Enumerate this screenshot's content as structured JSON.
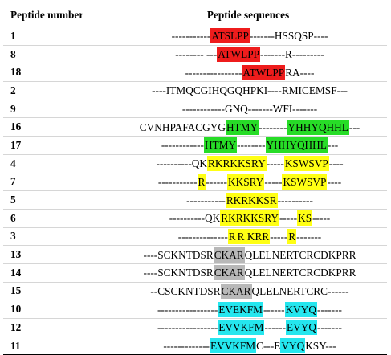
{
  "headers": {
    "number": "Peptide number",
    "sequence": "Peptide sequences"
  },
  "colors": {
    "red": "#ee1c1c",
    "green": "#27dc27",
    "yellow": "#ffff14",
    "gray": "#b8b8b8",
    "cyan": "#25e6ee"
  },
  "rows": [
    {
      "number": "1",
      "segments": [
        {
          "t": "-----------"
        },
        {
          "t": "ATSLPP",
          "hl": "red"
        },
        {
          "t": "-------HSSQSP----"
        }
      ]
    },
    {
      "number": "8",
      "segments": [
        {
          "t": "-------- ---"
        },
        {
          "t": "ATWLPP",
          "hl": "red"
        },
        {
          "t": "-------R---------"
        }
      ]
    },
    {
      "number": "18",
      "segments": [
        {
          "t": "----------------"
        },
        {
          "t": "ATWLPP",
          "hl": "red"
        },
        {
          "t": "RA----"
        }
      ]
    },
    {
      "number": "2",
      "segments": [
        {
          "t": "----ITMQCGIHQGQHPKI----RMICEMSF---"
        }
      ]
    },
    {
      "number": "9",
      "segments": [
        {
          "t": "------------GNQ-------WFI-------"
        }
      ]
    },
    {
      "number": "16",
      "segments": [
        {
          "t": "CVNHPAFACGYG"
        },
        {
          "t": "HTMY",
          "hl": "green"
        },
        {
          "t": "--------"
        },
        {
          "t": "YHHYQHHL",
          "hl": "green"
        },
        {
          "t": "---"
        }
      ]
    },
    {
      "number": "17",
      "segments": [
        {
          "t": "------------"
        },
        {
          "t": "HTMY",
          "hl": "green"
        },
        {
          "t": "--------"
        },
        {
          "t": "YHHYQHHL",
          "hl": "green"
        },
        {
          "t": "---"
        }
      ]
    },
    {
      "number": "4",
      "segments": [
        {
          "t": "----------QK"
        },
        {
          "t": "RKRKKSRY",
          "hl": "yellow"
        },
        {
          "t": "-----"
        },
        {
          "t": "KSWSVP",
          "hl": "yellow"
        },
        {
          "t": "----"
        }
      ]
    },
    {
      "number": "7",
      "segments": [
        {
          "t": "-----------"
        },
        {
          "t": "R",
          "hl": "yellow"
        },
        {
          "t": "------"
        },
        {
          "t": "KKSRY",
          "hl": "yellow"
        },
        {
          "t": "-----"
        },
        {
          "t": "KSWSVP",
          "hl": "yellow"
        },
        {
          "t": "----"
        }
      ]
    },
    {
      "number": "5",
      "segments": [
        {
          "t": "-----------"
        },
        {
          "t": "RKRKKSR",
          "hl": "yellow"
        },
        {
          "t": "----------"
        }
      ]
    },
    {
      "number": "6",
      "segments": [
        {
          "t": "----------QK"
        },
        {
          "t": "RKRKKSRY",
          "hl": "yellow"
        },
        {
          "t": "-----"
        },
        {
          "t": "KS",
          "hl": "yellow"
        },
        {
          "t": "-----"
        }
      ]
    },
    {
      "number": "3",
      "segments": [
        {
          "t": "--------------"
        },
        {
          "t": "R",
          "hl": "yellow"
        },
        {
          "t": "R KRR",
          "hl": "yellow"
        },
        {
          "t": "-----"
        },
        {
          "t": "R",
          "hl": "yellow"
        },
        {
          "t": "-------"
        }
      ]
    },
    {
      "number": "13",
      "segments": [
        {
          "t": "----SCKNTDSR"
        },
        {
          "t": "CKAR",
          "hl": "gray"
        },
        {
          "t": "QLELNERTCRCDKPRR"
        }
      ]
    },
    {
      "number": "14",
      "segments": [
        {
          "t": "----SCKNTDSR"
        },
        {
          "t": "CKAR",
          "hl": "gray"
        },
        {
          "t": "QLELNERTCRCDKPRR"
        }
      ]
    },
    {
      "number": "15",
      "segments": [
        {
          "t": "--CSCKNTDSR"
        },
        {
          "t": "CKAR",
          "hl": "gray"
        },
        {
          "t": "QLELNERTCRC------"
        }
      ]
    },
    {
      "number": "10",
      "segments": [
        {
          "t": "-----------------"
        },
        {
          "t": "EVEKFM",
          "hl": "cyan"
        },
        {
          "t": "------"
        },
        {
          "t": "KVYQ",
          "hl": "cyan"
        },
        {
          "t": "-------"
        }
      ]
    },
    {
      "number": "12",
      "segments": [
        {
          "t": "-----------------"
        },
        {
          "t": "EVVKFM",
          "hl": "cyan"
        },
        {
          "t": "------"
        },
        {
          "t": "EVYQ",
          "hl": "cyan"
        },
        {
          "t": "-------"
        }
      ]
    },
    {
      "number": "11",
      "segments": [
        {
          "t": "-------------"
        },
        {
          "t": "EVVKFM",
          "hl": "cyan"
        },
        {
          "t": "C---E"
        },
        {
          "t": "VYQ",
          "hl": "cyan"
        },
        {
          "t": "KSY---"
        }
      ]
    }
  ]
}
